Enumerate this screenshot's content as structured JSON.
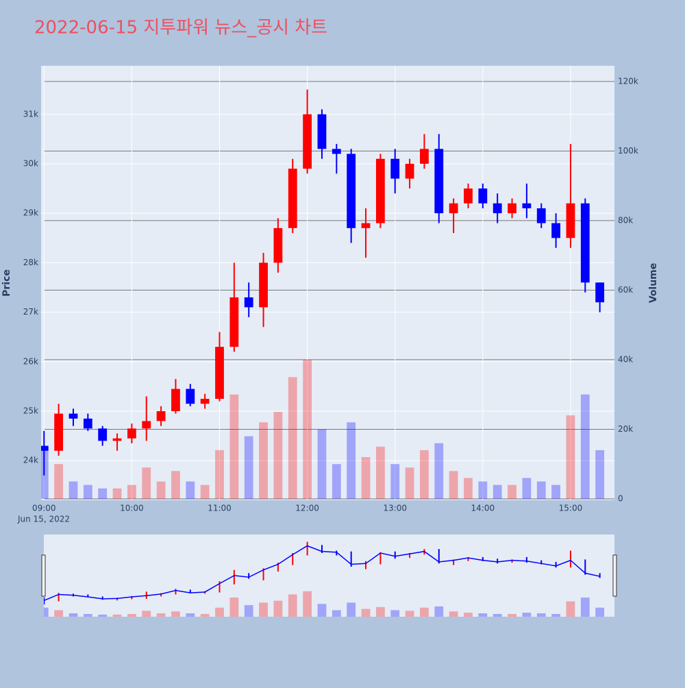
{
  "chart_data": {
    "type": "candlestick",
    "title": "2022-06-15 지투파워 뉴스_공시 차트",
    "title_color": "#ef4f5f",
    "y_label": "Price",
    "y2_label": "Volume",
    "x_date_label": "Jun 15, 2022",
    "increasing_color": "#ff0000",
    "decreasing_color": "#0000ff",
    "x": [
      "09:00",
      "09:10",
      "09:20",
      "09:30",
      "09:40",
      "09:50",
      "10:00",
      "10:10",
      "10:20",
      "10:30",
      "10:40",
      "10:50",
      "11:00",
      "11:10",
      "11:20",
      "11:30",
      "11:40",
      "11:50",
      "12:00",
      "12:10",
      "12:20",
      "12:30",
      "12:40",
      "12:50",
      "13:00",
      "13:10",
      "13:20",
      "13:30",
      "13:40",
      "13:50",
      "14:00",
      "14:10",
      "14:20",
      "14:30",
      "14:40",
      "14:50",
      "15:00",
      "15:10",
      "15:20"
    ],
    "open": [
      24300,
      24200,
      24950,
      24850,
      24650,
      24400,
      24450,
      24650,
      24800,
      25000,
      25450,
      25150,
      25250,
      26300,
      27300,
      27100,
      28000,
      28700,
      29900,
      31000,
      30300,
      30200,
      28700,
      28800,
      30100,
      29700,
      30000,
      30300,
      29000,
      29200,
      29500,
      29200,
      29000,
      29200,
      29100,
      28800,
      28500,
      29200,
      27600
    ],
    "high": [
      24600,
      25150,
      25050,
      24950,
      24700,
      24550,
      24750,
      25300,
      25100,
      25650,
      25550,
      25350,
      26600,
      28000,
      27600,
      28200,
      28900,
      30100,
      31500,
      31100,
      30400,
      30300,
      29100,
      30200,
      30300,
      30100,
      30600,
      30600,
      29300,
      29600,
      29600,
      29400,
      29300,
      29600,
      29200,
      29000,
      30400,
      29300,
      27600
    ],
    "low": [
      23700,
      24100,
      24700,
      24600,
      24300,
      24200,
      24350,
      24400,
      24700,
      24950,
      25100,
      25050,
      25200,
      26200,
      26900,
      26700,
      27800,
      28600,
      29800,
      30100,
      29800,
      28400,
      28100,
      28700,
      29400,
      29500,
      29900,
      28800,
      28600,
      29100,
      29100,
      28800,
      28900,
      28900,
      28700,
      28300,
      28300,
      27400,
      27000
    ],
    "close": [
      24200,
      24950,
      24850,
      24650,
      24400,
      24450,
      24650,
      24800,
      25000,
      25450,
      25150,
      25250,
      26300,
      27300,
      27100,
      28000,
      28700,
      29900,
      31000,
      30300,
      30200,
      28700,
      28800,
      30100,
      29700,
      30000,
      30300,
      29000,
      29200,
      29500,
      29200,
      29000,
      29200,
      29100,
      28800,
      28500,
      29200,
      27600,
      27200
    ],
    "volume": [
      14000,
      10000,
      5000,
      4000,
      3000,
      3000,
      4000,
      9000,
      5000,
      8000,
      5000,
      4000,
      14000,
      30000,
      18000,
      22000,
      25000,
      35000,
      40000,
      20000,
      10000,
      22000,
      12000,
      15000,
      10000,
      9000,
      14000,
      16000,
      8000,
      6000,
      5000,
      4000,
      4000,
      6000,
      5000,
      4000,
      24000,
      30000,
      14000
    ],
    "xlim": [
      "08:58",
      "15:30"
    ],
    "xticks": [
      "09:00",
      "10:00",
      "11:00",
      "12:00",
      "13:00",
      "14:00",
      "15:00"
    ],
    "ylim": [
      23200,
      31980
    ],
    "yticks": [
      {
        "value": 24000,
        "label": "24k"
      },
      {
        "value": 25000,
        "label": "25k"
      },
      {
        "value": 26000,
        "label": "26k"
      },
      {
        "value": 27000,
        "label": "27k"
      },
      {
        "value": 28000,
        "label": "28k"
      },
      {
        "value": 29000,
        "label": "29k"
      },
      {
        "value": 30000,
        "label": "30k"
      },
      {
        "value": 31000,
        "label": "31k"
      }
    ],
    "y2lim": [
      -400,
      124500
    ],
    "y2ticks": [
      0,
      {
        "value": 20000,
        "label": "20k"
      },
      {
        "value": 40000,
        "label": "40k"
      },
      {
        "value": 60000,
        "label": "60k"
      },
      {
        "value": 80000,
        "label": "80k"
      },
      {
        "value": 100000,
        "label": "100k"
      },
      {
        "value": 120000,
        "label": "120k"
      }
    ],
    "grid": true,
    "range_slider": true
  }
}
